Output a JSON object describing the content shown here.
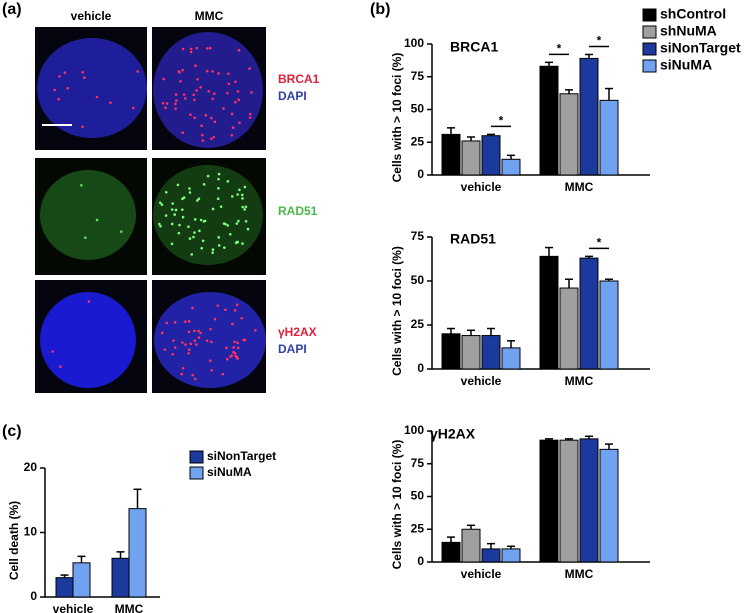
{
  "micrographs": {
    "label": "(a)",
    "columns": [
      "vehicle",
      "MMC"
    ],
    "rows": [
      {
        "labels": [
          "BRCA1",
          "DAPI"
        ]
      },
      {
        "labels": [
          "RAD51"
        ]
      },
      {
        "labels": [
          "γH2AX",
          "DAPI"
        ]
      }
    ]
  },
  "chart_data": [
    {
      "type": "bar",
      "label": "(b)",
      "title": "BRCA1",
      "ylabel": "Cells with > 10 foci (%)",
      "categories": [
        "vehicle",
        "MMC"
      ],
      "series": [
        {
          "name": "shControl",
          "color": "#000000",
          "values": [
            31,
            83
          ],
          "errors": [
            5,
            3
          ]
        },
        {
          "name": "shNuMA",
          "color": "#a0a0a0",
          "values": [
            26,
            62
          ],
          "errors": [
            3,
            3
          ]
        },
        {
          "name": "siNonTarget",
          "color": "#1b3a9c",
          "values": [
            30,
            89
          ],
          "errors": [
            1,
            3
          ]
        },
        {
          "name": "siNuMA",
          "color": "#70a2f0",
          "values": [
            12,
            57
          ],
          "errors": [
            3,
            9
          ]
        }
      ],
      "ylim": [
        0,
        100
      ],
      "yticks": [
        0,
        25,
        50,
        75,
        100
      ],
      "legend": "upper right",
      "annotations": [
        {
          "text": "*",
          "category": "vehicle",
          "between": [
            "siNonTarget",
            "siNuMA"
          ]
        },
        {
          "text": "*",
          "category": "MMC",
          "between": [
            "shControl",
            "shNuMA"
          ]
        },
        {
          "text": "*",
          "category": "MMC",
          "between": [
            "siNonTarget",
            "siNuMA"
          ]
        }
      ]
    },
    {
      "type": "bar",
      "title": "RAD51",
      "ylabel": "Cells with > 10 foci (%)",
      "categories": [
        "vehicle",
        "MMC"
      ],
      "series": [
        {
          "color": "#000000",
          "values": [
            20,
            64
          ],
          "errors": [
            3,
            5
          ]
        },
        {
          "color": "#a0a0a0",
          "values": [
            19,
            46
          ],
          "errors": [
            3,
            5
          ]
        },
        {
          "color": "#1b3a9c",
          "values": [
            19,
            63
          ],
          "errors": [
            4,
            1
          ]
        },
        {
          "color": "#70a2f0",
          "values": [
            12,
            50
          ],
          "errors": [
            4,
            1
          ]
        }
      ],
      "ylim": [
        0,
        75
      ],
      "yticks": [
        0,
        25,
        50,
        75
      ],
      "annotations": [
        {
          "text": "*",
          "category": "MMC",
          "between": [
            "siNonTarget",
            "siNuMA"
          ]
        }
      ]
    },
    {
      "type": "bar",
      "title": "γH2AX",
      "ylabel": "Cells with > 10 foci (%)",
      "categories": [
        "vehicle",
        "MMC"
      ],
      "series": [
        {
          "color": "#000000",
          "values": [
            15,
            93
          ],
          "errors": [
            4,
            1
          ]
        },
        {
          "color": "#a0a0a0",
          "values": [
            25,
            93
          ],
          "errors": [
            3,
            1
          ]
        },
        {
          "color": "#1b3a9c",
          "values": [
            10,
            94
          ],
          "errors": [
            4,
            2
          ]
        },
        {
          "color": "#70a2f0",
          "values": [
            10,
            86
          ],
          "errors": [
            2,
            4
          ]
        }
      ],
      "ylim": [
        0,
        100
      ],
      "yticks": [
        0,
        25,
        50,
        75,
        100
      ]
    },
    {
      "type": "bar",
      "label": "(c)",
      "ylabel": "Cell death (%)",
      "categories": [
        "vehicle",
        "MMC"
      ],
      "series": [
        {
          "name": "siNonTarget",
          "color": "#1b3a9c",
          "values": [
            3,
            6
          ],
          "errors": [
            0.4,
            1
          ]
        },
        {
          "name": "siNuMA",
          "color": "#70a2f0",
          "values": [
            5.3,
            13.7
          ],
          "errors": [
            1,
            3
          ]
        }
      ],
      "ylim": [
        0,
        20
      ],
      "yticks": [
        0,
        10,
        20
      ],
      "legend": "right"
    }
  ]
}
